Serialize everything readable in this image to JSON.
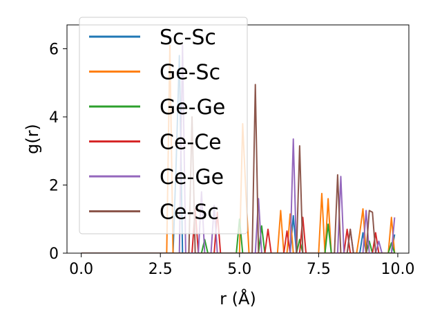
{
  "chart_data": {
    "type": "line",
    "xlabel": "r (Å)",
    "ylabel": "g(r)",
    "xlim": [
      -0.45,
      10.35
    ],
    "ylim": [
      0,
      6.7
    ],
    "xticks": [
      0.0,
      2.5,
      5.0,
      7.5,
      10.0
    ],
    "xtick_labels": [
      "0.0",
      "2.5",
      "5.0",
      "7.5",
      "10.0"
    ],
    "yticks": [
      0,
      2,
      4,
      6
    ],
    "ytick_labels": [
      "0",
      "2",
      "4",
      "6"
    ],
    "grid": false,
    "legend_position": "top-left",
    "series": [
      {
        "name": "Sc-Sc",
        "color": "#1f77b4",
        "peaks": [
          [
            3.0,
            2.7
          ],
          [
            3.1,
            5.8
          ],
          [
            6.7,
            1.1
          ],
          [
            8.9,
            0.6
          ],
          [
            9.9,
            0.55
          ]
        ]
      },
      {
        "name": "Ge-Sc",
        "color": "#ff7f0e",
        "peaks": [
          [
            2.8,
            6.1
          ],
          [
            5.1,
            3.8
          ],
          [
            5.2,
            1.8
          ],
          [
            6.3,
            1.25
          ],
          [
            6.6,
            1.15
          ],
          [
            7.6,
            1.75
          ],
          [
            7.8,
            1.6
          ],
          [
            8.8,
            0.6
          ],
          [
            8.9,
            1.3
          ],
          [
            9.8,
            1.05
          ]
        ]
      },
      {
        "name": "Ge-Ge",
        "color": "#2ca02c",
        "peaks": [
          [
            3.9,
            0.4
          ],
          [
            5.0,
            1.0
          ],
          [
            5.7,
            0.8
          ],
          [
            6.9,
            0.4
          ],
          [
            7.8,
            0.85
          ],
          [
            9.1,
            0.35
          ],
          [
            9.8,
            0.3
          ]
        ]
      },
      {
        "name": "Ce-Ce",
        "color": "#d62728",
        "peaks": [
          [
            3.6,
            1.3
          ],
          [
            4.3,
            1.2
          ],
          [
            5.9,
            0.7
          ],
          [
            6.5,
            0.65
          ],
          [
            7.0,
            1.05
          ],
          [
            8.4,
            0.7
          ],
          [
            9.3,
            0.6
          ]
        ]
      },
      {
        "name": "Ce-Ge",
        "color": "#9467bd",
        "peaks": [
          [
            3.2,
            6.1
          ],
          [
            3.8,
            1.8
          ],
          [
            4.2,
            1.4
          ],
          [
            5.6,
            1.6
          ],
          [
            6.7,
            3.35
          ],
          [
            8.2,
            2.25
          ],
          [
            8.5,
            0.7
          ],
          [
            9.0,
            1.25
          ],
          [
            9.4,
            0.35
          ],
          [
            9.9,
            1.05
          ]
        ]
      },
      {
        "name": "Ce-Sc",
        "color": "#8c564b",
        "peaks": [
          [
            3.5,
            4.0
          ],
          [
            5.5,
            4.95
          ],
          [
            6.9,
            3.15
          ],
          [
            8.1,
            2.3
          ],
          [
            8.5,
            0.7
          ],
          [
            9.1,
            1.25
          ],
          [
            9.2,
            1.2
          ]
        ]
      }
    ]
  }
}
